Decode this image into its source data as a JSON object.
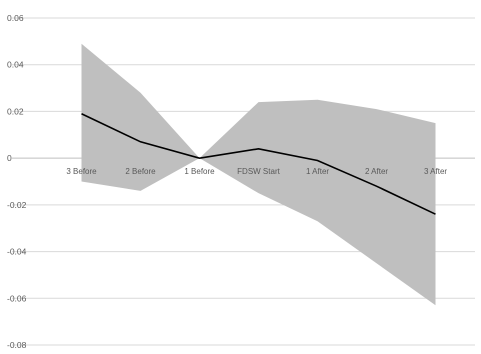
{
  "chart_data": {
    "type": "line",
    "title": "",
    "xlabel": "",
    "ylabel": "",
    "categories": [
      "3 Before",
      "2 Before",
      "1 Before",
      "FDSW Start",
      "1 After",
      "2 After",
      "3 After"
    ],
    "series": [
      {
        "values": [
          0.019,
          0.007,
          0.0,
          0.004,
          -0.001,
          -0.012,
          -0.024
        ]
      }
    ],
    "band": {
      "upper": [
        0.049,
        0.028,
        0.0,
        0.024,
        0.025,
        0.021,
        0.015
      ],
      "lower": [
        -0.01,
        -0.014,
        0.0,
        -0.015,
        -0.027,
        -0.045,
        -0.063
      ]
    },
    "yticks": [
      0.06,
      0.04,
      0.02,
      0,
      -0.02,
      -0.04,
      -0.06,
      -0.08
    ],
    "ytick_labels": [
      "0.06",
      "0.04",
      "0.02",
      "0",
      "-0.02",
      "-0.04",
      "-0.06",
      "-0.08"
    ],
    "ylim": [
      -0.08,
      0.06
    ],
    "grid": true,
    "legend": "none",
    "colors": {
      "line": "#000000",
      "band": "#bfbfbf",
      "grid": "#d9d9d9",
      "axis": "#bfbfbf",
      "text": "#595959"
    }
  }
}
